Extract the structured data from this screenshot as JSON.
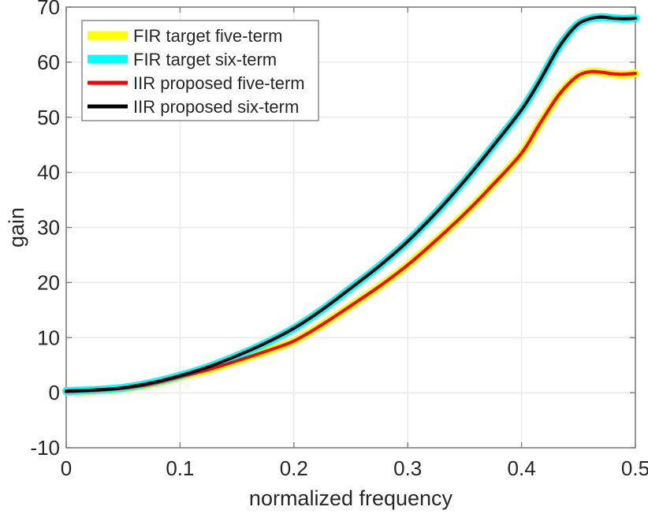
{
  "figure": {
    "background": "#FFFFFF",
    "axes_color": "#7F7F7F",
    "grid_color": "#EAEAEA",
    "text_color": "#262626",
    "legend_border_color": "#7F7F7F",
    "legend_background": "#FFFFFF"
  },
  "chart_data": {
    "type": "line",
    "title": "",
    "xlabel": "normalized frequency",
    "ylabel": "gain",
    "xlim": [
      0,
      0.5
    ],
    "ylim": [
      -10,
      70
    ],
    "xticks": [
      0,
      0.1,
      0.2,
      0.3,
      0.4,
      0.5
    ],
    "xtick_labels": [
      "0",
      "0.1",
      "0.2",
      "0.3",
      "0.4",
      "0.5"
    ],
    "yticks": [
      -10,
      0,
      10,
      20,
      30,
      40,
      50,
      60,
      70
    ],
    "ytick_labels": [
      "-10",
      "0",
      "10",
      "20",
      "30",
      "40",
      "50",
      "60",
      "70"
    ],
    "grid": true,
    "legend_position": "top-left",
    "x": [
      0,
      0.025,
      0.05,
      0.075,
      0.1,
      0.125,
      0.15,
      0.175,
      0.2,
      0.225,
      0.25,
      0.275,
      0.3,
      0.325,
      0.35,
      0.375,
      0.4,
      0.415,
      0.43,
      0.44,
      0.45,
      0.46,
      0.47,
      0.48,
      0.49,
      0.5
    ],
    "series": [
      {
        "name": "FIR target five-term",
        "color": "#FFFF00",
        "linewidth": 10,
        "values": [
          0.2,
          0.4,
          0.8,
          1.6,
          2.9,
          4.2,
          5.8,
          7.5,
          9.4,
          12.4,
          15.8,
          19.3,
          23.2,
          27.7,
          32.5,
          37.8,
          43.5,
          48.5,
          53.3,
          55.8,
          57.6,
          58.3,
          58.2,
          57.9,
          57.8,
          58.0
        ]
      },
      {
        "name": "FIR target six-term",
        "color": "#00FFFF",
        "linewidth": 10,
        "values": [
          0.3,
          0.5,
          0.9,
          1.8,
          3.1,
          4.7,
          6.7,
          9.0,
          11.7,
          15.1,
          19.0,
          23.0,
          27.5,
          32.7,
          38.5,
          44.8,
          51.4,
          56.3,
          61.8,
          64.8,
          67.0,
          67.9,
          68.2,
          68.0,
          67.9,
          68.0
        ]
      },
      {
        "name": "IIR proposed five-term",
        "color": "#FF0000",
        "linewidth": 4,
        "values": [
          0.2,
          0.4,
          0.8,
          1.6,
          2.9,
          4.2,
          5.8,
          7.5,
          9.4,
          12.4,
          15.8,
          19.3,
          23.2,
          27.7,
          32.5,
          37.8,
          43.5,
          48.5,
          53.3,
          55.8,
          57.6,
          58.3,
          58.2,
          57.9,
          57.8,
          58.0
        ]
      },
      {
        "name": "IIR proposed six-term",
        "color": "#000000",
        "linewidth": 4,
        "values": [
          0.3,
          0.5,
          0.9,
          1.8,
          3.1,
          4.7,
          6.7,
          9.0,
          11.7,
          15.1,
          19.0,
          23.0,
          27.5,
          32.7,
          38.5,
          44.8,
          51.4,
          56.3,
          61.8,
          64.8,
          67.0,
          67.9,
          68.2,
          68.0,
          67.9,
          68.0
        ]
      }
    ]
  }
}
